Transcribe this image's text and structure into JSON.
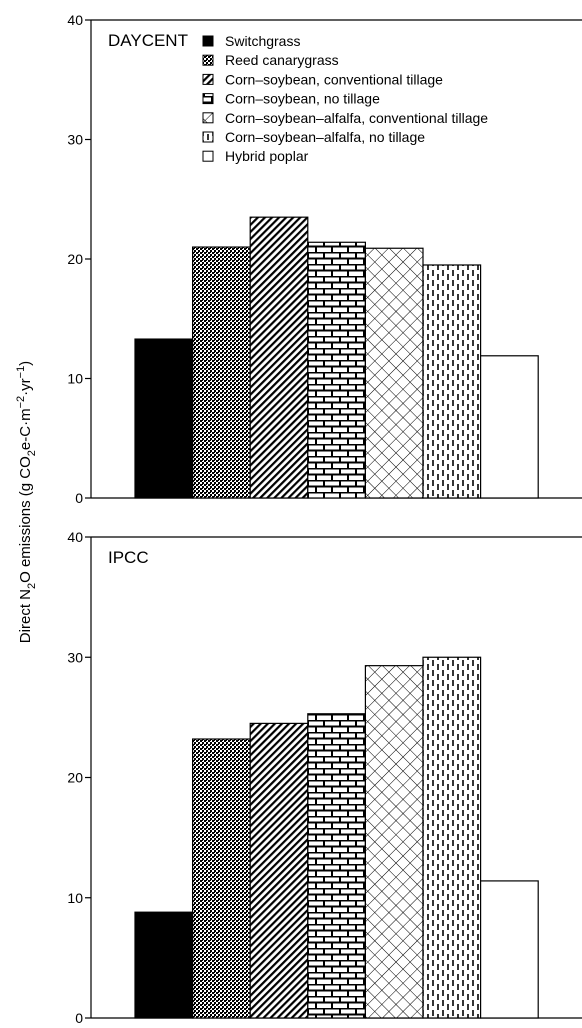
{
  "chart_data": [
    {
      "type": "bar",
      "title": "DAYCENT",
      "ylabel": "Direct N2O emissions (g CO2e-C·m⁻²·yr⁻¹)",
      "ylim": [
        0,
        40
      ],
      "yticks": [
        0,
        10,
        20,
        30,
        40
      ],
      "categories": [
        "Switchgrass",
        "Reed canarygrass",
        "Corn–soybean, conventional tillage",
        "Corn–soybean, no tillage",
        "Corn–soybean–alfalfa, conventional tillage",
        "Corn–soybean–alfalfa, no tillage",
        "Hybrid poplar"
      ],
      "values": [
        13.3,
        21.0,
        23.5,
        21.4,
        20.9,
        19.5,
        11.9
      ],
      "legend": {
        "placement": "top",
        "entries": [
          "Switchgrass",
          "Reed canarygrass",
          "Corn–soybean, conventional tillage",
          "Corn–soybean, no tillage",
          "Corn–soybean–alfalfa, conventional tillage",
          "Corn–soybean–alfalfa, no tillage",
          "Hybrid poplar"
        ]
      },
      "grid": false
    },
    {
      "type": "bar",
      "title": "IPCC",
      "ylim": [
        0,
        40
      ],
      "yticks": [
        0,
        10,
        20,
        30,
        40
      ],
      "categories": [
        "Switchgrass",
        "Reed canarygrass",
        "Corn–soybean, conventional tillage",
        "Corn–soybean, no tillage",
        "Corn–soybean–alfalfa, conventional tillage",
        "Corn–soybean–alfalfa, no tillage",
        "Hybrid poplar"
      ],
      "values": [
        8.8,
        23.2,
        24.5,
        25.3,
        29.3,
        30.0,
        11.4
      ],
      "grid": false
    }
  ],
  "ylabel_parts": {
    "prefix": "Direct N",
    "sub1": "2",
    "mid": "O emissions (g CO",
    "sub2": "2",
    "post": "e-C·m",
    "sup1": "−2",
    "post2": "·yr",
    "sup2": "−1",
    "end": ")"
  },
  "patterns": [
    "solid",
    "dots",
    "diagonal",
    "brick",
    "crosshatch",
    "dashes",
    "white"
  ]
}
